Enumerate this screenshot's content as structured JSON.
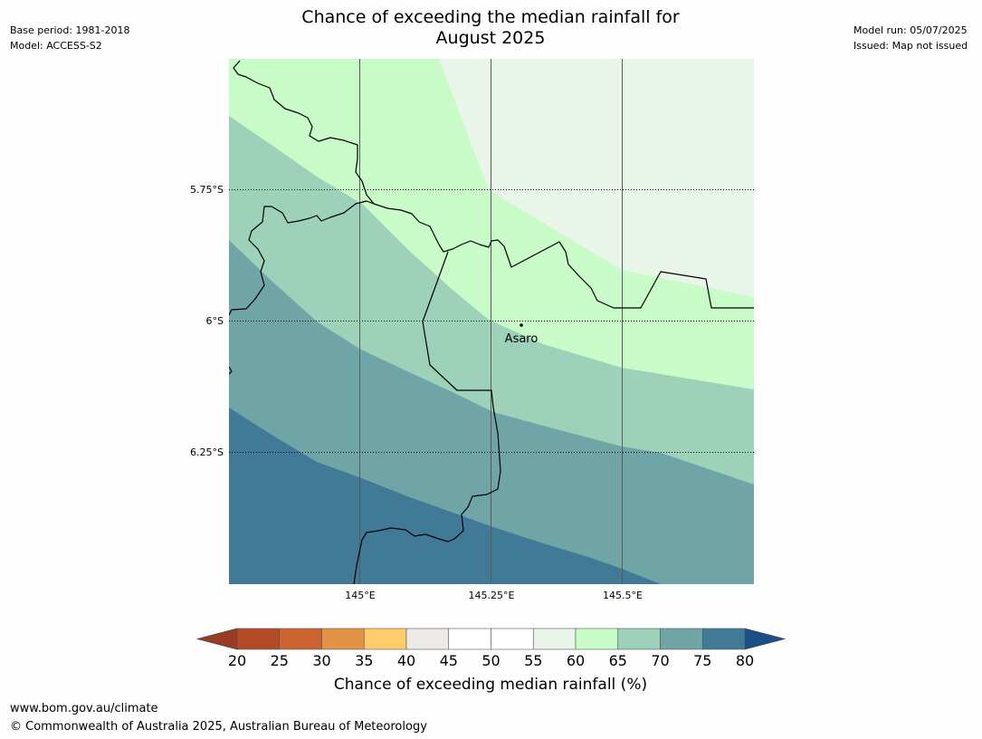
{
  "header": {
    "title_line1": "Chance of exceeding the median rainfall for",
    "title_line2": "August 2025",
    "base_period": "Base period: 1981-2018",
    "model": "Model: ACCESS-S2",
    "model_run": "Model run: 05/07/2025",
    "issued": "Issued: Map not issued"
  },
  "map": {
    "lat_labels": [
      "5.75°S",
      "6°S",
      "6.25°S"
    ],
    "lon_labels": [
      "145°E",
      "145.25°E",
      "145.5°E"
    ],
    "place": {
      "name": "Asaro"
    },
    "colors": {
      "band_55_60": "#e9f5e8",
      "band_60_65": "#c9fbc9",
      "band_65_70": "#9ed1b9",
      "band_70_75": "#70a5a7",
      "band_75_80": "#417a97",
      "boundary": "#000000",
      "graticule_lon": "#5a5a5a"
    }
  },
  "colorbar": {
    "label": "Chance of exceeding median rainfall (%)",
    "ticks": [
      "20",
      "25",
      "30",
      "35",
      "40",
      "45",
      "50",
      "55",
      "60",
      "65",
      "70",
      "75",
      "80"
    ],
    "low_extend_color": "#9a3b24",
    "high_extend_color": "#1a4f87",
    "colors": [
      "#b14a26",
      "#cc6432",
      "#e39346",
      "#fecc6a",
      "#ede9e6",
      "#ffffff",
      "#ffffff",
      "#e9f5e8",
      "#c9fbc9",
      "#9ed1b9",
      "#70a5a7",
      "#417a97"
    ]
  },
  "footer": {
    "url": "www.bom.gov.au/climate",
    "copyright": "© Commonwealth of Australia 2025, Australian Bureau of Meteorology"
  }
}
